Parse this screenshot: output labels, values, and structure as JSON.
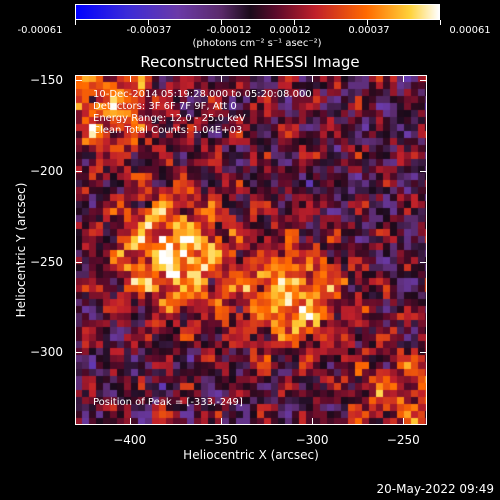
{
  "chart_data": {
    "type": "heatmap",
    "title": "Reconstructed RHESSI Image",
    "xlabel": "Heliocentric X (arcsec)",
    "ylabel": "Heliocentric Y (arcsec)",
    "xlim": [
      -430,
      -237
    ],
    "ylim": [
      -340,
      -147
    ],
    "x_ticks": [
      -400,
      -350,
      -300,
      -250
    ],
    "y_ticks": [
      -150,
      -200,
      -250,
      -300
    ],
    "colorbar": {
      "ticks": [
        "-0.00061",
        "-0.00037",
        "-0.00012",
        "0.00012",
        "0.00037",
        "0.00061"
      ],
      "units": "(photons cm⁻² s⁻¹ asec⁻²)",
      "range": [
        -0.00061,
        0.00061
      ]
    },
    "annotations": [
      "10-Dec-2014 05:19:28.000 to 05:20:08.000",
      "Detectors: 3F 6F 7F 9F, Att 0",
      "Energy Range: 12.0 - 25.0 keV",
      "Clean      Total Counts: 1.04E+03"
    ],
    "peak_label": "Position of Peak = [-333,-249]",
    "peak_position": [
      -333,
      -249
    ],
    "sources": [
      {
        "x": -378,
        "y": -245,
        "intensity": 0.0006
      },
      {
        "x": -312,
        "y": -270,
        "intensity": 0.0005
      },
      {
        "x": -412,
        "y": -162,
        "intensity": 0.0004
      },
      {
        "x": -250,
        "y": -325,
        "intensity": 0.0003
      }
    ]
  },
  "footer": {
    "timestamp": "20-May-2022 09:49"
  }
}
